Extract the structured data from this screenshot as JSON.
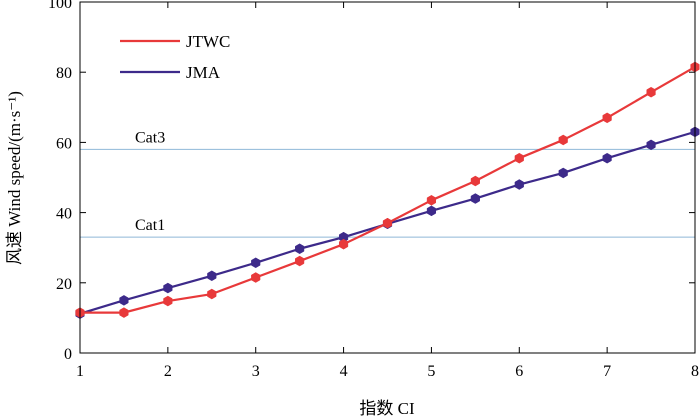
{
  "chart_data": {
    "type": "line",
    "xlabel": "指数 CI",
    "ylabel": "风速 Wind speed/(m·s⁻¹)",
    "xlim": [
      1,
      8
    ],
    "ylim": [
      0,
      100
    ],
    "xticks": [
      "1",
      "2",
      "3",
      "4",
      "5",
      "6",
      "7",
      "8"
    ],
    "yticks": [
      "0",
      "20",
      "40",
      "60",
      "80",
      "100"
    ],
    "grid": false,
    "legend_position": "top-left",
    "reference_lines": [
      {
        "label": "Cat3",
        "y": 58,
        "color": "#8fb8d8"
      },
      {
        "label": "Cat1",
        "y": 33,
        "color": "#8fb8d8"
      }
    ],
    "series": [
      {
        "name": "JTWC",
        "color": "#e8393a",
        "x": [
          1,
          1.5,
          2,
          2.5,
          3,
          3.5,
          4,
          4.5,
          5,
          5.5,
          6,
          6.5,
          7,
          7.5,
          8
        ],
        "y": [
          11.5,
          11.5,
          14.8,
          16.8,
          21.5,
          26.2,
          31,
          37,
          43.5,
          49,
          55.5,
          60.7,
          67,
          74.3,
          81.5
        ]
      },
      {
        "name": "JMA",
        "color": "#3d2a8a",
        "x": [
          1,
          1.5,
          2,
          2.5,
          3,
          3.5,
          4,
          4.5,
          5,
          5.5,
          6,
          6.5,
          7,
          7.5,
          8
        ],
        "y": [
          11.2,
          15,
          18.5,
          22,
          25.7,
          29.7,
          33,
          36.8,
          40.5,
          44,
          48,
          51.3,
          55.5,
          59.3,
          63
        ]
      }
    ]
  }
}
